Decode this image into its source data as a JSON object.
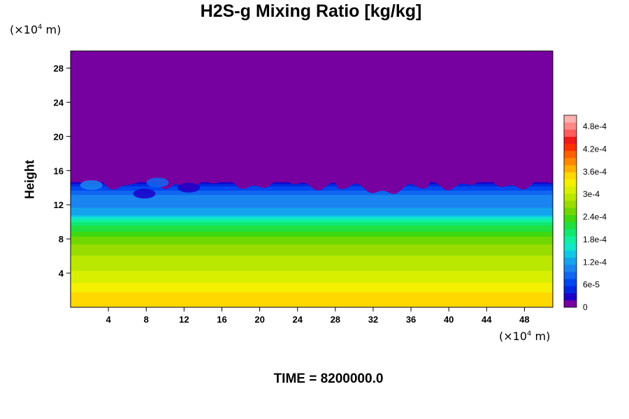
{
  "chart_data": {
    "type": "heatmap",
    "title": "H2S-g Mixing Ratio [kg/kg]",
    "ylabel": "Height",
    "xlabel": "",
    "x_unit": {
      "prefix": "(×10",
      "exp": "4",
      "suffix": " m)"
    },
    "y_unit": {
      "prefix": "(×10",
      "exp": "4",
      "suffix": " m)"
    },
    "xlim": [
      0,
      51
    ],
    "ylim": [
      0,
      30
    ],
    "x_ticks": [
      4,
      8,
      12,
      16,
      20,
      24,
      28,
      32,
      36,
      40,
      44,
      48
    ],
    "y_ticks": [
      4,
      8,
      12,
      16,
      20,
      24,
      28
    ],
    "colorbar": {
      "range": [
        0,
        0.00051
      ],
      "tick_values": [
        0,
        6e-05,
        0.00012,
        0.00018,
        0.00024,
        0.0003,
        0.00036,
        0.00042,
        0.00048
      ],
      "tick_labels": [
        "0",
        "6e-5",
        "1.2e-4",
        "1.8e-4",
        "2.4e-4",
        "3e-4",
        "3.6e-4",
        "4.2e-4",
        "4.8e-4"
      ],
      "colors": [
        "#7700a0",
        "#1c00c8",
        "#0028e0",
        "#0046f0",
        "#1066f0",
        "#1a85f0",
        "#14a4ee",
        "#10c8e6",
        "#10e8c8",
        "#10f0a0",
        "#10e870",
        "#20e040",
        "#40d810",
        "#70d800",
        "#98dc00",
        "#bbe800",
        "#d8f000",
        "#f4f000",
        "#ffd800",
        "#ffb000",
        "#ff8800",
        "#ff6000",
        "#ff3000",
        "#f01818",
        "#ff5c5c",
        "#ff8888",
        "#ffb0b0"
      ],
      "levels_drawn": 27
    },
    "profile": [
      {
        "height": 0,
        "value": 0.000345
      },
      {
        "height": 1.5,
        "value": 0.000345
      },
      {
        "height": 3.5,
        "value": 0.00031
      },
      {
        "height": 6,
        "value": 0.000285
      },
      {
        "height": 8,
        "value": 0.000255
      },
      {
        "height": 9.5,
        "value": 0.00021
      },
      {
        "height": 10.2,
        "value": 0.00018
      },
      {
        "height": 11,
        "value": 0.00012
      },
      {
        "height": 13,
        "value": 0.0001
      },
      {
        "height": 14.2,
        "value": 6e-05
      },
      {
        "height": 15,
        "value": 0
      }
    ]
  },
  "footer": {
    "time_label": "TIME = 8200000.0"
  },
  "colors": {
    "background": "#7700a0",
    "axis": "#000000"
  }
}
